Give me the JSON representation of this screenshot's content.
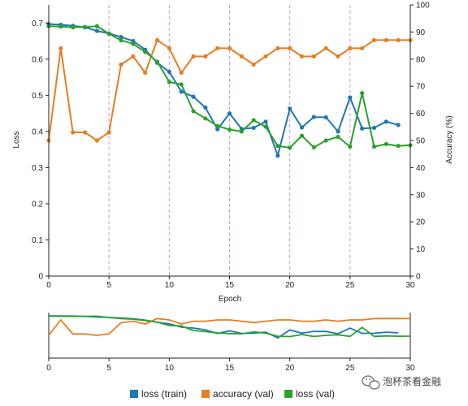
{
  "chart_data": {
    "type": "line",
    "x_label": "Epoch",
    "y_left_label": "Loss",
    "y_right_label": "Accuracy (%)",
    "x_range": [
      0,
      30
    ],
    "y_left_range": [
      0,
      0.75
    ],
    "y_right_range": [
      0,
      100
    ],
    "x_ticks": [
      0,
      5,
      10,
      15,
      20,
      25,
      30
    ],
    "y_left_ticks": [
      0,
      0.1,
      0.2,
      0.3,
      0.4,
      0.5,
      0.6,
      0.7
    ],
    "y_right_ticks": [
      0,
      10,
      20,
      30,
      40,
      50,
      60,
      70,
      80,
      90,
      100
    ],
    "vertical_gridlines": [
      5,
      10,
      15,
      20,
      25
    ],
    "series": [
      {
        "name": "loss (train)",
        "axis": "left",
        "color": "#1f77b4",
        "x": [
          0,
          1,
          2,
          3,
          4,
          5,
          6,
          7,
          8,
          9,
          10,
          11,
          12,
          13,
          14,
          15,
          16,
          17,
          18,
          19,
          20,
          21,
          22,
          23,
          24,
          25,
          26,
          27,
          28,
          29
        ],
        "values": [
          0.697,
          0.695,
          0.692,
          0.688,
          0.678,
          0.671,
          0.661,
          0.65,
          0.626,
          0.59,
          0.565,
          0.51,
          0.496,
          0.466,
          0.406,
          0.45,
          0.407,
          0.41,
          0.427,
          0.333,
          0.463,
          0.411,
          0.44,
          0.439,
          0.4,
          0.494,
          0.408,
          0.41,
          0.427,
          0.418
        ]
      },
      {
        "name": "accuracy (val)",
        "axis": "right",
        "color": "#e67e22",
        "x": [
          0,
          1,
          2,
          3,
          4,
          5,
          6,
          7,
          8,
          9,
          10,
          11,
          12,
          13,
          14,
          15,
          16,
          17,
          18,
          19,
          20,
          21,
          22,
          23,
          24,
          25,
          26,
          27,
          28,
          29,
          30
        ],
        "values": [
          50,
          84,
          53,
          53,
          50,
          53,
          78,
          81,
          75,
          87,
          84,
          75,
          81,
          81,
          84,
          84,
          81,
          78,
          81,
          84,
          84,
          81,
          81,
          84,
          81,
          84,
          84,
          87,
          87,
          87,
          87
        ]
      },
      {
        "name": "loss (val)",
        "axis": "left",
        "color": "#2ca02c",
        "x": [
          0,
          1,
          2,
          3,
          4,
          5,
          6,
          7,
          8,
          9,
          10,
          11,
          12,
          13,
          14,
          15,
          16,
          17,
          18,
          19,
          20,
          21,
          22,
          23,
          24,
          25,
          26,
          27,
          28,
          29,
          30
        ],
        "values": [
          0.691,
          0.69,
          0.688,
          0.689,
          0.691,
          0.67,
          0.652,
          0.642,
          0.62,
          0.593,
          0.537,
          0.53,
          0.456,
          0.436,
          0.415,
          0.405,
          0.4,
          0.431,
          0.413,
          0.36,
          0.355,
          0.388,
          0.356,
          0.375,
          0.385,
          0.358,
          0.506,
          0.358,
          0.365,
          0.36,
          0.362
        ]
      }
    ],
    "legend_position": "bottom-center",
    "has_overview_brush": true
  },
  "watermark": {
    "text": "泡杯茶看金融"
  }
}
